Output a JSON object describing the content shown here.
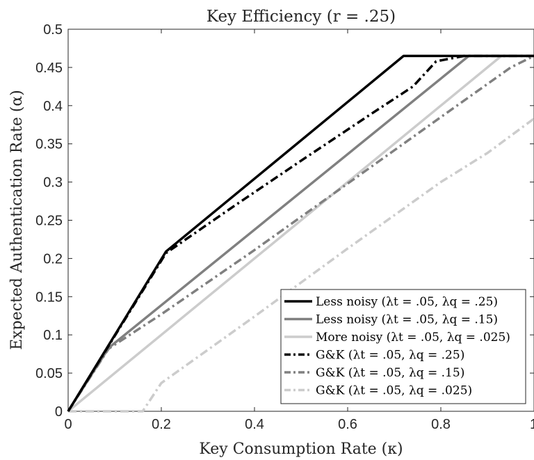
{
  "chart_data": {
    "type": "line",
    "title": "Key Efficiency (r = .25)",
    "xlabel": "Key Consumption Rate (κ)",
    "ylabel": "Expected Authentication Rate (α)",
    "xlim": [
      0,
      1
    ],
    "ylim": [
      0,
      0.5
    ],
    "xticks": [
      0,
      0.2,
      0.4,
      0.6,
      0.8,
      1
    ],
    "xtick_labels": [
      "0",
      "0.2",
      "0.4",
      "0.6",
      "0.8",
      "1"
    ],
    "yticks": [
      0,
      0.05,
      0.1,
      0.15,
      0.2,
      0.25,
      0.3,
      0.35,
      0.4,
      0.45,
      0.5
    ],
    "ytick_labels": [
      "0",
      "0.05",
      "0.1",
      "0.15",
      "0.2",
      "0.25",
      "0.3",
      "0.35",
      "0.4",
      "0.45",
      "0.5"
    ],
    "grid": false,
    "legend_position": "bottom-right",
    "series": [
      {
        "name": "Less noisy (λt = .05, λq = .25)",
        "color": "#000000",
        "style": "solid",
        "x": [
          0,
          0.21,
          0.72,
          1
        ],
        "y": [
          0,
          0.209,
          0.465,
          0.465
        ]
      },
      {
        "name": "Less noisy (λt = .05, λq = .15)",
        "color": "#808080",
        "style": "solid",
        "x": [
          0,
          0.087,
          0.86,
          1
        ],
        "y": [
          0,
          0.083,
          0.465,
          0.465
        ]
      },
      {
        "name": "More noisy (λt = .05, λq = .025)",
        "color": "#cccccc",
        "style": "solid",
        "x": [
          0,
          0.93,
          1
        ],
        "y": [
          0,
          0.465,
          0.465
        ]
      },
      {
        "name": "G&K (λt = .05, λq = .25)",
        "color": "#000000",
        "style": "dashdot",
        "x": [
          0,
          0.21,
          0.35,
          0.5,
          0.65,
          0.74,
          0.79,
          0.85,
          1
        ],
        "y": [
          0,
          0.207,
          0.266,
          0.328,
          0.389,
          0.425,
          0.458,
          0.465,
          0.465
        ]
      },
      {
        "name": "G&K (λt = .05, λq = .15)",
        "color": "#808080",
        "style": "dashdot",
        "x": [
          0,
          0.087,
          0.2,
          0.4,
          0.6,
          0.8,
          0.95,
          1
        ],
        "y": [
          0,
          0.082,
          0.127,
          0.211,
          0.298,
          0.385,
          0.45,
          0.465
        ]
      },
      {
        "name": "G&K (λt = .05, λq = .025)",
        "color": "#cccccc",
        "style": "dashdot",
        "x": [
          0,
          0.16,
          0.2,
          0.4,
          0.6,
          0.8,
          0.9,
          1
        ],
        "y": [
          0,
          0.0,
          0.037,
          0.124,
          0.213,
          0.3,
          0.338,
          0.383
        ]
      }
    ]
  }
}
